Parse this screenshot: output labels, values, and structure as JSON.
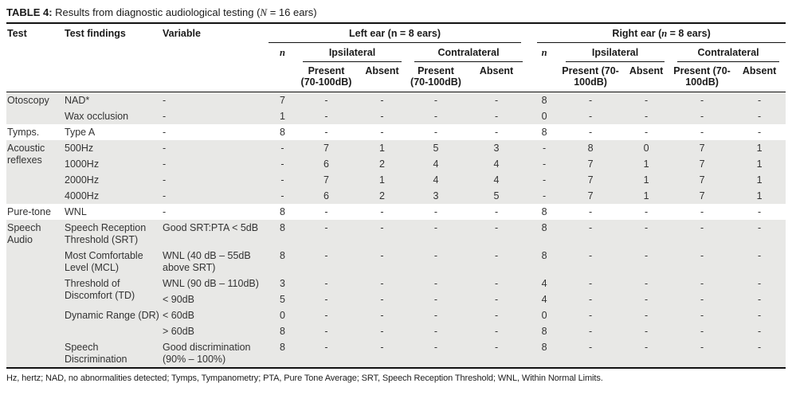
{
  "title": {
    "label": "TABLE 4:",
    "pre": " Results from diagnostic audiological testing (",
    "nvar": "N",
    "post": " = 16 ears)"
  },
  "header": {
    "test": "Test",
    "findings": "Test findings",
    "variable": "Variable",
    "left_group": "Left ear (n = 8 ears)",
    "right_group_pre": "Right ear (",
    "right_group_n": "n",
    "right_group_post": " = 8 ears)",
    "n": "n",
    "ipsilateral": "Ipsilateral",
    "contralateral": "Contralateral",
    "present": "Present (70-100dB)",
    "absent": "Absent"
  },
  "rows": [
    {
      "test": "Otoscopy",
      "finding": "NAD*",
      "variable": "-",
      "c": [
        "7",
        "-",
        "-",
        "-",
        "-",
        "8",
        "-",
        "-",
        "-",
        "-"
      ]
    },
    {
      "finding": "Wax occlusion",
      "variable": "-",
      "c": [
        "1",
        "-",
        "-",
        "-",
        "-",
        "0",
        "-",
        "-",
        "-",
        "-"
      ]
    },
    {
      "test": "Tymps.",
      "finding": "Type A",
      "variable": "-",
      "c": [
        "8",
        "-",
        "-",
        "-",
        "-",
        "8",
        "-",
        "-",
        "-",
        "-"
      ]
    },
    {
      "test": "Acoustic reflexes",
      "finding": "500Hz",
      "variable": "-",
      "c": [
        "-",
        "7",
        "1",
        "5",
        "3",
        "-",
        "8",
        "0",
        "7",
        "1"
      ]
    },
    {
      "finding": "1000Hz",
      "variable": "-",
      "c": [
        "-",
        "6",
        "2",
        "4",
        "4",
        "-",
        "7",
        "1",
        "7",
        "1"
      ]
    },
    {
      "finding": "2000Hz",
      "variable": "-",
      "c": [
        "-",
        "7",
        "1",
        "4",
        "4",
        "-",
        "7",
        "1",
        "7",
        "1"
      ]
    },
    {
      "finding": "4000Hz",
      "variable": "-",
      "c": [
        "-",
        "6",
        "2",
        "3",
        "5",
        "-",
        "7",
        "1",
        "7",
        "1"
      ]
    },
    {
      "test": "Pure-tone",
      "finding": "WNL",
      "variable": "-",
      "c": [
        "8",
        "-",
        "-",
        "-",
        "-",
        "8",
        "-",
        "-",
        "-",
        "-"
      ]
    },
    {
      "test": "Speech Audio",
      "finding": "Speech Reception Threshold (SRT)",
      "variable": "Good SRT:PTA < 5dB",
      "c": [
        "8",
        "-",
        "-",
        "-",
        "-",
        "8",
        "-",
        "-",
        "-",
        "-"
      ]
    },
    {
      "finding": "Most Comfortable Level (MCL)",
      "variable": "WNL (40 dB – 55dB above SRT)",
      "c": [
        "8",
        "-",
        "-",
        "-",
        "-",
        "8",
        "-",
        "-",
        "-",
        "-"
      ]
    },
    {
      "finding": "Threshold of Discomfort (TD)",
      "variable": "WNL (90 dB – 110dB)",
      "c": [
        "3",
        "-",
        "-",
        "-",
        "-",
        "4",
        "-",
        "-",
        "-",
        "-"
      ]
    },
    {
      "variable": "< 90dB",
      "c": [
        "5",
        "-",
        "-",
        "-",
        "-",
        "4",
        "-",
        "-",
        "-",
        "-"
      ]
    },
    {
      "finding": "Dynamic Range (DR)",
      "variable": "< 60dB",
      "c": [
        "0",
        "-",
        "-",
        "-",
        "-",
        "0",
        "-",
        "-",
        "-",
        "-"
      ]
    },
    {
      "variable": "> 60dB",
      "c": [
        "8",
        "-",
        "-",
        "-",
        "-",
        "8",
        "-",
        "-",
        "-",
        "-"
      ]
    },
    {
      "finding": "Speech Discrimination",
      "variable": "Good discrimination (90% – 100%)",
      "c": [
        "8",
        "-",
        "-",
        "-",
        "-",
        "8",
        "-",
        "-",
        "-",
        "-"
      ]
    }
  ],
  "footnote": "Hz, hertz; NAD, no abnormalities detected; Tymps, Tympanometry; PTA, Pure Tone Average; SRT, Speech Reception Threshold; WNL, Within Normal Limits.",
  "colors": {
    "row_shade": "#e8e8e6",
    "rule": "#111111",
    "text": "#333333"
  }
}
